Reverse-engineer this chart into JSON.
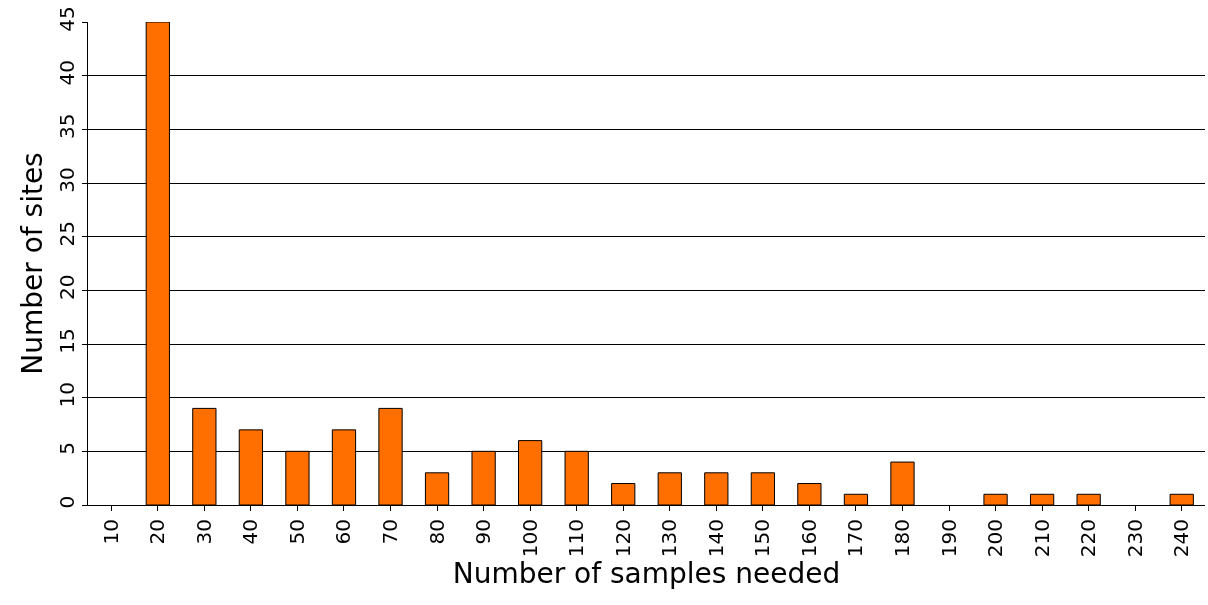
{
  "chart_data": {
    "type": "bar",
    "xlabel": "Number of samples needed",
    "ylabel": "Number of sites",
    "categories": [
      "10",
      "20",
      "30",
      "40",
      "50",
      "60",
      "70",
      "80",
      "90",
      "100",
      "110",
      "120",
      "130",
      "140",
      "150",
      "160",
      "170",
      "180",
      "190",
      "200",
      "210",
      "220",
      "230",
      "240"
    ],
    "values": [
      0,
      45,
      9,
      7,
      5,
      7,
      9,
      3,
      5,
      6,
      5,
      2,
      3,
      3,
      3,
      2,
      1,
      4,
      0,
      1,
      1,
      1,
      0,
      1
    ],
    "color": "#ff6f00",
    "ylim": [
      0,
      45
    ],
    "yticks": [
      0,
      5,
      10,
      15,
      20,
      25,
      30,
      35,
      40,
      45
    ],
    "grid": "y",
    "legend": false
  }
}
